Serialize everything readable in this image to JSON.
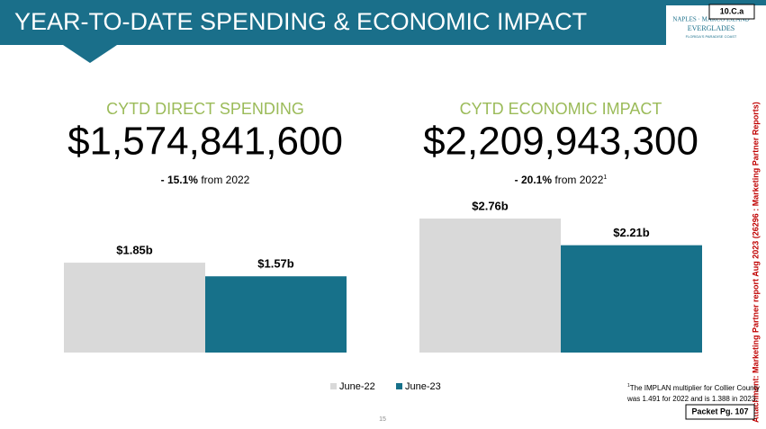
{
  "header": {
    "title": "YEAR-TO-DATE SPENDING & ECONOMIC IMPACT",
    "badge": "10.C.a",
    "logo": [
      "NAPLES · MARCO ISLAND",
      "EVERGLADES",
      "FLORIDA'S PARADISE COAST"
    ]
  },
  "chart_data": [
    {
      "type": "bar",
      "title": "CYTD DIRECT SPENDING",
      "headline": "$1,574,841,600",
      "change": [
        "- 15.1%",
        " from 2022"
      ],
      "series": [
        {
          "color": "#d9d9d9",
          "values": [
            1.85
          ],
          "value_labels": [
            "$1.85b"
          ]
        },
        {
          "color": "#17718a",
          "values": [
            1.57
          ],
          "value_labels": [
            "$1.57b"
          ]
        }
      ]
    },
    {
      "type": "bar",
      "title": "CYTD ECONOMIC IMPACT",
      "headline": "$2,209,943,300",
      "change": [
        "- 20.1%",
        " from 2022"
      ],
      "change_note": "1",
      "series": [
        {
          "color": "#d9d9d9",
          "values": [
            2.76
          ],
          "value_labels": [
            "$2.76b"
          ]
        },
        {
          "color": "#17718a",
          "values": [
            2.21
          ],
          "value_labels": [
            "$2.21b"
          ]
        }
      ]
    }
  ],
  "legend": [
    {
      "name": "June-22",
      "color": "#d9d9d9"
    },
    {
      "name": "June-23",
      "color": "#17718a"
    }
  ],
  "footnote": {
    "mark": "1",
    "lines": [
      "The IMPLAN multiplier for Collier County",
      "was 1.491 for 2022 and is 1.388 in 2023."
    ]
  },
  "page_number": "15",
  "packet": "Packet Pg. 107",
  "side_note": "Attachment: Marketing Partner report Aug 2023  (26296 : Marketing Partner Reports)"
}
